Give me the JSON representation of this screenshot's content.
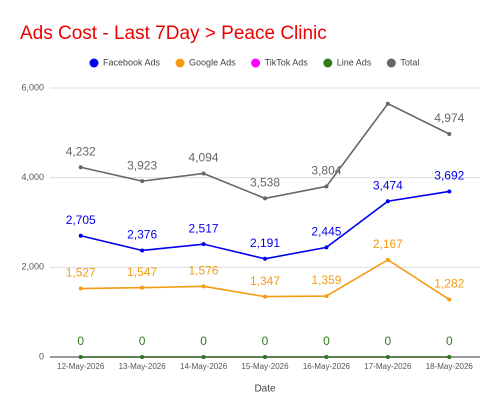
{
  "chart_data": {
    "type": "line",
    "title": "Ads Cost - Last 7Day > Peace Clinic",
    "x_label": "Date",
    "categories": [
      "12-May-2026",
      "13-May-2026",
      "14-May-2026",
      "15-May-2026",
      "16-May-2026",
      "17-May-2026",
      "18-May-2026"
    ],
    "ylim": [
      0,
      6000
    ],
    "yticks": [
      0,
      {
        "value": 2000,
        "label": "2,000"
      },
      {
        "value": 4000,
        "label": "4,000"
      },
      {
        "value": 6000,
        "label": "6,000"
      }
    ],
    "grid": true,
    "legend": "top",
    "series": [
      {
        "name": "Facebook Ads",
        "color": "#0000ee",
        "data_labels": true,
        "values": [
          2705,
          2376,
          2517,
          2191,
          2445,
          3474,
          3692
        ],
        "value_labels": [
          "2,705",
          "2,376",
          "2,517",
          "2,191",
          "2,445",
          "3,474",
          "3,692"
        ]
      },
      {
        "name": "Google Ads",
        "color": "#f39c12",
        "data_labels": true,
        "values": [
          1527,
          1547,
          1576,
          1347,
          1359,
          2167,
          1282
        ],
        "value_labels": [
          "1,527",
          "1,547",
          "1,576",
          "1,347",
          "1,359",
          "2,167",
          "1,282"
        ]
      },
      {
        "name": "TikTok Ads",
        "color": "#ff00ff",
        "data_labels": false,
        "values": [
          0,
          0,
          0,
          0,
          0,
          0,
          0
        ]
      },
      {
        "name": "Line Ads",
        "color": "#2e7d1a",
        "data_labels": true,
        "values": [
          0,
          0,
          0,
          0,
          0,
          0,
          0
        ]
      },
      {
        "name": "Total",
        "color": "#666666",
        "data_labels": true,
        "values": [
          4232,
          3923,
          4094,
          3538,
          3804,
          5650,
          4974
        ],
        "value_labels": [
          "4,232",
          "3,923",
          "4,094",
          "3,538",
          "3,804",
          null,
          "4,974"
        ]
      }
    ]
  }
}
